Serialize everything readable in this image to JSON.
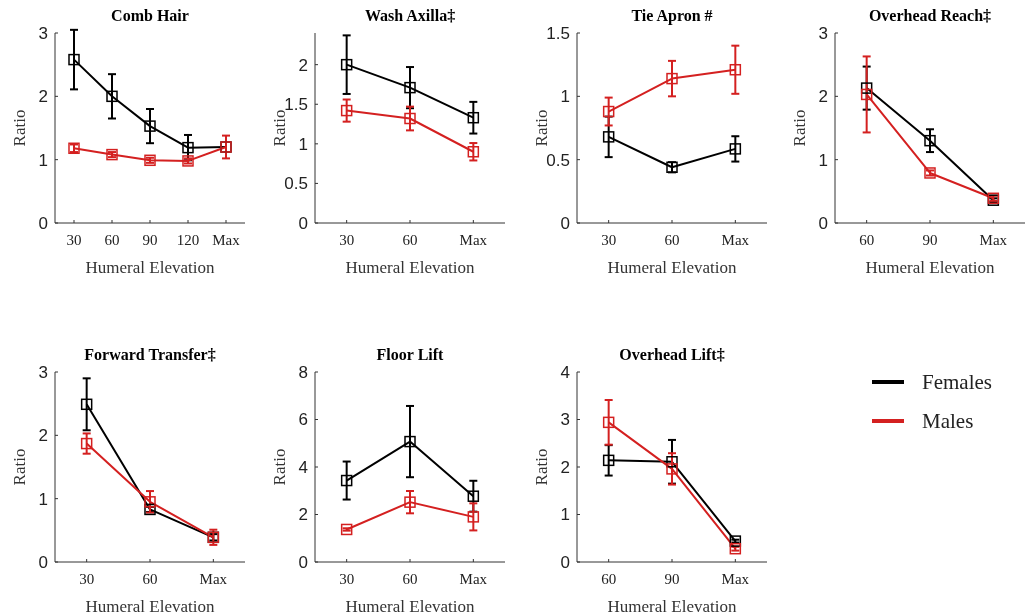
{
  "chart_data": [
    {
      "type": "line",
      "title": "Comb Hair",
      "xlabel": "Humeral Elevation",
      "ylabel": "Ratio",
      "categories": [
        "30",
        "60",
        "90",
        "120",
        "Max"
      ],
      "ylim": [
        0,
        3
      ],
      "yticks": [
        0,
        1,
        2,
        3
      ],
      "marker": "square",
      "grid": false,
      "series": [
        {
          "color": "#000000",
          "values": [
            2.58,
            2.0,
            1.53,
            1.19,
            1.2
          ],
          "errors": [
            0.47,
            0.35,
            0.27,
            0.2,
            null
          ]
        },
        {
          "color": "#d42020",
          "values": [
            1.18,
            1.08,
            0.99,
            0.98,
            1.2
          ],
          "errors": [
            0.06,
            0.04,
            0.04,
            0.04,
            0.18
          ]
        }
      ]
    },
    {
      "type": "line",
      "title": "Wash Axilla‡",
      "xlabel": "Humeral Elevation",
      "ylabel": "Ratio",
      "categories": [
        "30",
        "60",
        "Max"
      ],
      "ylim": [
        0,
        2.4
      ],
      "yticks": [
        0,
        0.5,
        1,
        1.5,
        2
      ],
      "marker": "square",
      "grid": false,
      "series": [
        {
          "color": "#000000",
          "values": [
            2.0,
            1.71,
            1.33
          ],
          "errors": [
            0.37,
            0.26,
            0.2
          ]
        },
        {
          "color": "#d42020",
          "values": [
            1.42,
            1.32,
            0.9
          ],
          "errors": [
            0.14,
            0.15,
            0.11
          ]
        }
      ]
    },
    {
      "type": "line",
      "title": "Tie Apron #",
      "xlabel": "Humeral Elevation",
      "ylabel": "Ratio",
      "categories": [
        "30",
        "60",
        "Max"
      ],
      "ylim": [
        0,
        1.5
      ],
      "yticks": [
        0,
        0.5,
        1,
        1.5
      ],
      "marker": "square",
      "grid": false,
      "series": [
        {
          "color": "#000000",
          "values": [
            0.68,
            0.44,
            0.585
          ],
          "errors": [
            0.16,
            0.04,
            0.1
          ]
        },
        {
          "color": "#d42020",
          "values": [
            0.88,
            1.14,
            1.21
          ],
          "errors": [
            0.11,
            0.14,
            0.19
          ]
        }
      ]
    },
    {
      "type": "line",
      "title": "Overhead Reach‡",
      "xlabel": "Humeral Elevation",
      "ylabel": "Ratio",
      "categories": [
        "60",
        "90",
        "Max"
      ],
      "ylim": [
        0,
        3
      ],
      "yticks": [
        0,
        1,
        2,
        3
      ],
      "marker": "square",
      "grid": false,
      "series": [
        {
          "color": "#000000",
          "values": [
            2.13,
            1.3,
            0.36
          ],
          "errors": [
            0.34,
            0.18,
            0.03
          ]
        },
        {
          "color": "#d42020",
          "values": [
            2.03,
            0.79,
            0.39
          ],
          "errors": [
            0.6,
            0.04,
            0.04
          ]
        }
      ]
    },
    {
      "type": "line",
      "title": "Forward Transfer‡",
      "xlabel": "Humeral Elevation",
      "ylabel": "Ratio",
      "categories": [
        "30",
        "60",
        "Max"
      ],
      "ylim": [
        0,
        3
      ],
      "yticks": [
        0,
        1,
        2,
        3
      ],
      "marker": "square",
      "grid": false,
      "series": [
        {
          "color": "#000000",
          "values": [
            2.49,
            0.83,
            0.39
          ],
          "errors": [
            0.41,
            0.04,
            0.05
          ]
        },
        {
          "color": "#d42020",
          "values": [
            1.87,
            0.95,
            0.39
          ],
          "errors": [
            0.16,
            0.17,
            0.12
          ]
        }
      ]
    },
    {
      "type": "line",
      "title": "Floor Lift",
      "xlabel": "Humeral Elevation",
      "ylabel": "Ratio",
      "categories": [
        "30",
        "60",
        "Max"
      ],
      "ylim": [
        0,
        8
      ],
      "yticks": [
        0,
        2,
        4,
        6,
        8
      ],
      "marker": "square",
      "grid": false,
      "series": [
        {
          "color": "#000000",
          "values": [
            3.43,
            5.07,
            2.77
          ],
          "errors": [
            0.8,
            1.5,
            0.65
          ]
        },
        {
          "color": "#d42020",
          "values": [
            1.37,
            2.52,
            1.9
          ],
          "errors": [
            0.05,
            0.47,
            0.57
          ]
        }
      ]
    },
    {
      "type": "line",
      "title": "Overhead Lift‡",
      "xlabel": "Humeral Elevation",
      "ylabel": "Ratio",
      "categories": [
        "60",
        "90",
        "Max"
      ],
      "ylim": [
        0,
        4
      ],
      "yticks": [
        0,
        1,
        2,
        3,
        4
      ],
      "marker": "square",
      "grid": false,
      "legend": "right",
      "series": [
        {
          "name": "Females",
          "color": "#000000",
          "values": [
            2.14,
            2.11,
            0.44
          ],
          "errors": [
            0.32,
            0.46,
            0.03
          ]
        },
        {
          "name": "Males",
          "color": "#d42020",
          "values": [
            2.94,
            1.96,
            0.28
          ],
          "errors": [
            0.47,
            0.33,
            0.04
          ]
        }
      ]
    }
  ]
}
